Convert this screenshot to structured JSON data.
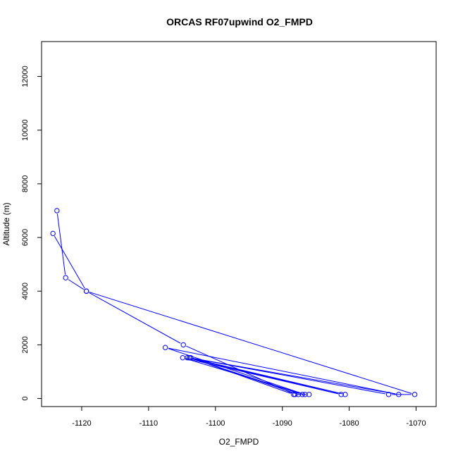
{
  "chart_data": {
    "type": "line",
    "title": "ORCAS RF07upwind O2_FMPD",
    "xlabel": "O2_FMPD",
    "ylabel": "Altitude (m)",
    "xlim": [
      -1126,
      -1067
    ],
    "ylim": [
      -300,
      13300
    ],
    "xticks": [
      -1120,
      -1110,
      -1100,
      -1090,
      -1080,
      -1070
    ],
    "yticks": [
      0,
      2000,
      4000,
      6000,
      8000,
      10000,
      12000
    ],
    "grid": false,
    "legend": "none",
    "series": [
      {
        "color": "#0000ff",
        "marker": "open-circle",
        "x": [
          -1123.7,
          -1122.4,
          -1119.3,
          -1104.8,
          -1088.1,
          -1086.0,
          -1087.6,
          -1103.7,
          -1088.3,
          -1087.0,
          -1103.9,
          -1080.6,
          -1104.2,
          -1081.2,
          -1104.9,
          -1086.6,
          -1107.5,
          -1072.6,
          -1103.9,
          -1074.1,
          -1070.2,
          -1119.3,
          -1124.3
        ],
        "y": [
          7000,
          4500,
          4000,
          2000,
          150,
          150,
          150,
          1520,
          150,
          150,
          1520,
          150,
          1520,
          150,
          1520,
          150,
          1900,
          150,
          1520,
          150,
          150,
          4000,
          6150
        ]
      }
    ]
  }
}
